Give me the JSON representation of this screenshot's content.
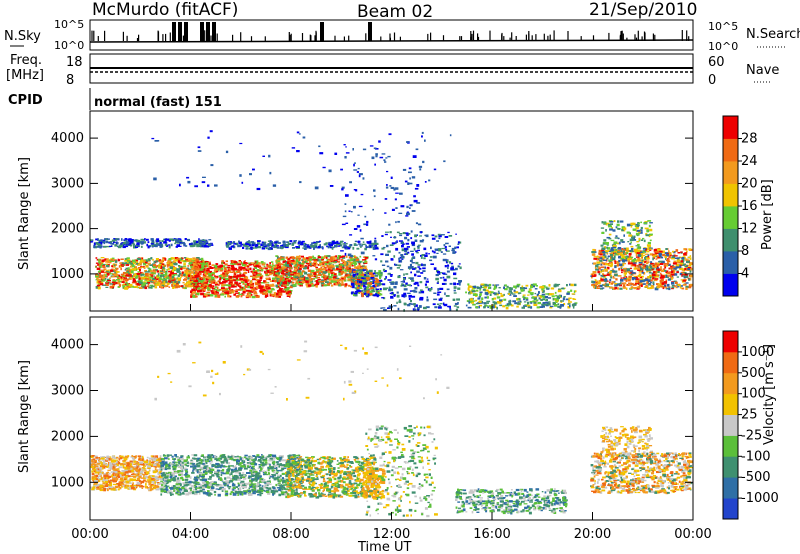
{
  "header": {
    "station": "McMurdo (fitACF)",
    "beam": "Beam 02",
    "date": "21/Sep/2010"
  },
  "top_panels": {
    "nsky_label": "N.Sky",
    "nsky_ticks": [
      "10^5",
      "10^0"
    ],
    "nsearch_label": "N.Search",
    "nsearch_ticks": [
      "10^5",
      "10^0"
    ],
    "freq_label": "Freq.",
    "freq_unit": "[MHz]",
    "freq_ticks": [
      "18",
      "8"
    ],
    "nave_label": "Nave",
    "nave_ticks": [
      "60",
      "0"
    ],
    "cpid_label": "CPID",
    "cpid_text": "normal (fast) 151"
  },
  "colors": {
    "power_scale": [
      "#0000ee",
      "#2a5fa8",
      "#3f8f6e",
      "#66cc33",
      "#f0c400",
      "#f39a1e",
      "#f06a14",
      "#ee0000"
    ],
    "velocity_scale": [
      "#2244cc",
      "#2f6fa6",
      "#3f9070",
      "#5bbf3a",
      "#c8c8c8",
      "#f2c200",
      "#f39a1e",
      "#f06a14",
      "#ee0000"
    ]
  },
  "chart_data": [
    {
      "type": "heatmap",
      "name": "power",
      "ylabel": "Slant Range [km]",
      "colorbar_label": "Power [dB]",
      "colorbar_ticks": [
        "28",
        "24",
        "20",
        "16",
        "12",
        "8",
        "4"
      ],
      "yticks": [
        "4000",
        "3000",
        "2000",
        "1000"
      ],
      "ylim": [
        180,
        4600
      ],
      "xlim_hours": [
        0,
        24
      ],
      "grid": false
    },
    {
      "type": "heatmap",
      "name": "velocity",
      "ylabel": "Slant Range [km]",
      "xlabel": "Time UT",
      "colorbar_label": "Velocity [m s⁻¹]",
      "colorbar_ticks": [
        "1000",
        "500",
        "100",
        "25",
        "-25",
        "-100",
        "-500",
        "-1000"
      ],
      "yticks": [
        "4000",
        "3000",
        "2000",
        "1000"
      ],
      "xticks": [
        "00:00",
        "04:00",
        "08:00",
        "12:00",
        "16:00",
        "20:00",
        "00:00"
      ],
      "ylim": [
        180,
        4600
      ],
      "xlim_hours": [
        0,
        24
      ],
      "grid": false
    }
  ]
}
